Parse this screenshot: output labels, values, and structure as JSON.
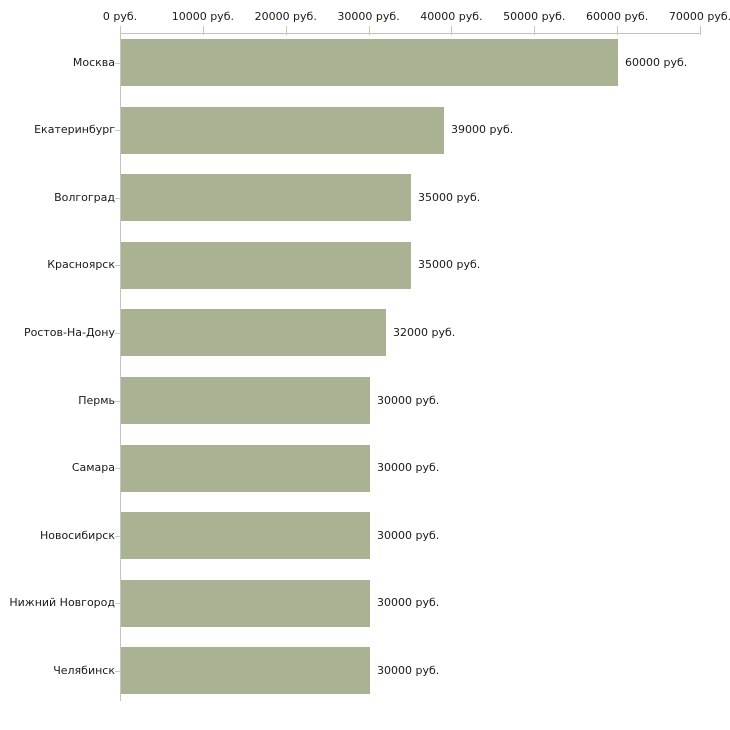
{
  "chart_data": {
    "type": "bar",
    "orientation": "horizontal",
    "unit": "руб.",
    "categories": [
      "Москва",
      "Екатеринбург",
      "Волгоград",
      "Красноярск",
      "Ростов-На-Дону",
      "Пермь",
      "Самара",
      "Новосибирск",
      "Нижний Новгород",
      "Челябинск"
    ],
    "values": [
      60000,
      39000,
      35000,
      35000,
      32000,
      30000,
      30000,
      30000,
      30000,
      30000
    ],
    "value_labels": [
      "60000 руб.",
      "39000 руб.",
      "35000 руб.",
      "35000 руб.",
      "32000 руб.",
      "30000 руб.",
      "30000 руб.",
      "30000 руб.",
      "30000 руб.",
      "30000 руб."
    ],
    "x_ticks": [
      {
        "value": 0,
        "label": "0 руб."
      },
      {
        "value": 10000,
        "label": "10000 руб."
      },
      {
        "value": 20000,
        "label": "20000 руб."
      },
      {
        "value": 30000,
        "label": "30000 руб."
      },
      {
        "value": 40000,
        "label": "40000 руб."
      },
      {
        "value": 50000,
        "label": "50000 руб."
      },
      {
        "value": 60000,
        "label": "60000 руб."
      },
      {
        "value": 70000,
        "label": "70000 руб."
      }
    ],
    "xlim": [
      0,
      70000
    ],
    "grid": false,
    "legend": "none",
    "axis_position": "top",
    "bar_color": "#a9b293",
    "axis_line_color": "#c3c3c3",
    "numeric_tick_color": "#cccc99",
    "category_tick_color": "#c9c9c9",
    "text_color": "#1a1a1a"
  }
}
